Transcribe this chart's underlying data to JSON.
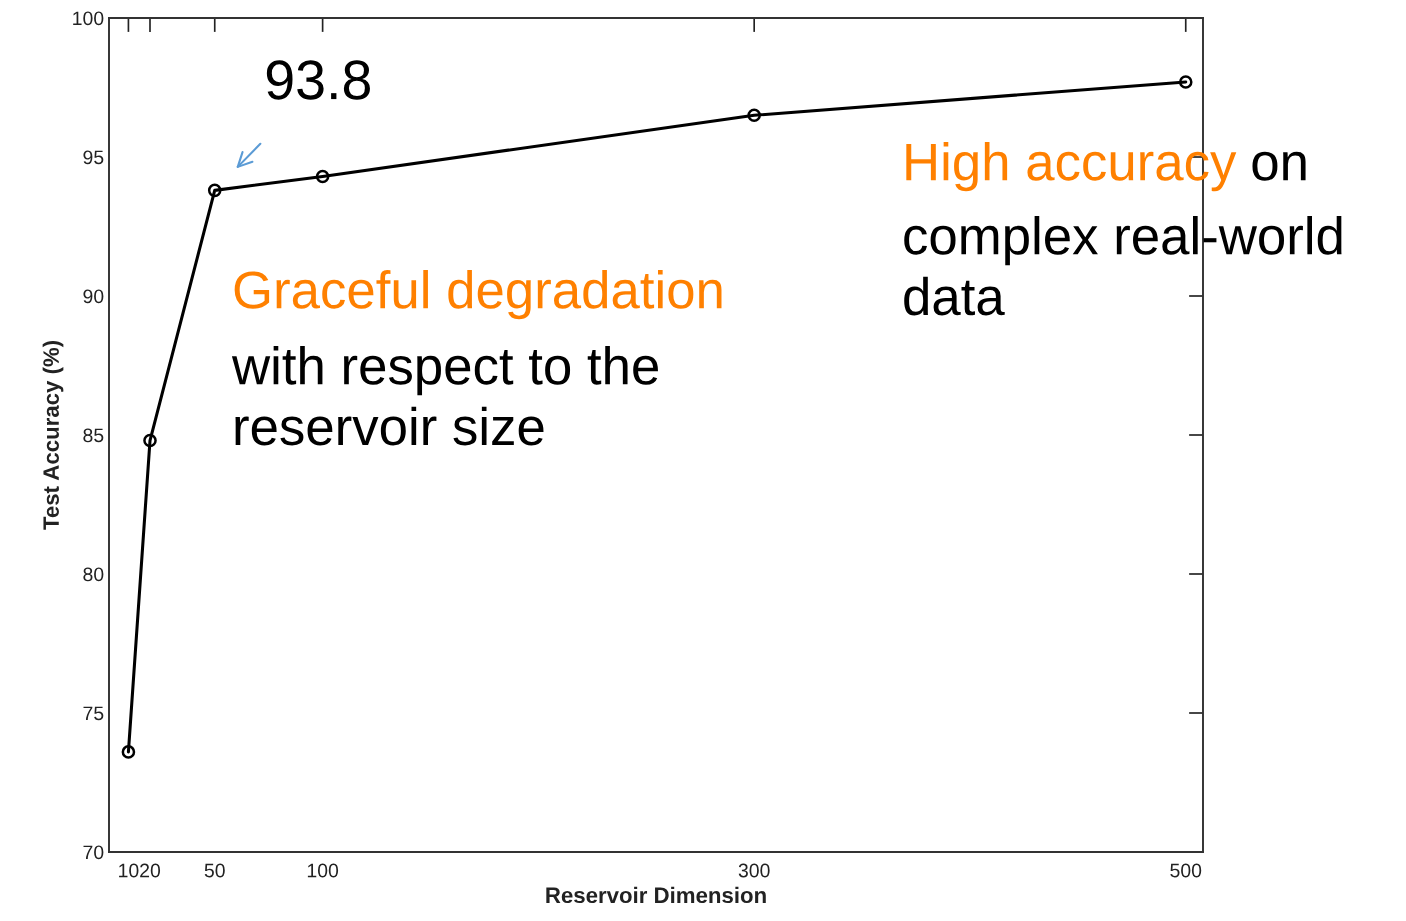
{
  "chart_data": {
    "type": "line",
    "xlabel": "Reservoir Dimension",
    "ylabel": "Test Accuracy (%)",
    "x": [
      10,
      20,
      50,
      100,
      300,
      500
    ],
    "series": [
      {
        "color": "#000000",
        "values": [
          73.6,
          84.8,
          93.8,
          94.3,
          96.5,
          97.7
        ]
      }
    ],
    "marker": "circle",
    "line_style": "solid",
    "grid": false,
    "legend": false,
    "xlim": [
      1,
      508
    ],
    "xticks": [
      10,
      20,
      50,
      100,
      300,
      500
    ],
    "ylim": [
      70,
      100
    ],
    "yticks": [
      70,
      75,
      80,
      85,
      90,
      95,
      100
    ],
    "annotations": [
      {
        "text": "93.8",
        "x": 50,
        "y": 93.8
      },
      "Graceful degradation",
      "with respect to the\nreservoir size",
      "High accuracy",
      "on",
      "complex real-world\ndata"
    ]
  }
}
